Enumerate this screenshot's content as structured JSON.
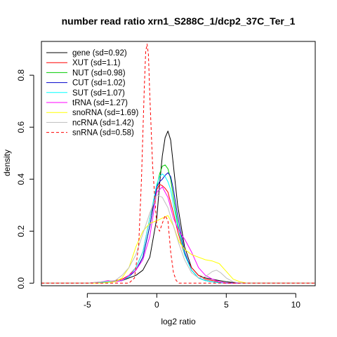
{
  "chart_data": {
    "type": "line",
    "title": "number read ratio xrn1_S288C_1/dcp2_37C_Ter_1",
    "xlabel": "log2 ratio",
    "ylabel": "density",
    "xlim": [
      -8.3,
      11.4
    ],
    "ylim": [
      -0.01,
      0.93
    ],
    "x_ticks": [
      -5,
      0,
      5,
      10
    ],
    "x_tick_labels": [
      "-5",
      "0",
      "5",
      "10"
    ],
    "y_ticks": [
      0.0,
      0.2,
      0.4,
      0.6,
      0.8
    ],
    "y_tick_labels": [
      "0.0",
      "0.2",
      "0.4",
      "0.6",
      "0.8"
    ],
    "grid": false,
    "legend_position": "top-left",
    "series": [
      {
        "name": "gene (sd=0.92)",
        "color": "#000000",
        "dash": false,
        "x": [
          -8.3,
          -5.0,
          -3.5,
          -2.5,
          -2.0,
          -1.5,
          -1.0,
          -0.5,
          0.0,
          0.2,
          0.4,
          0.6,
          0.8,
          1.0,
          1.2,
          1.5,
          2.0,
          2.5,
          3.0,
          3.5,
          4.0,
          4.5,
          5.0,
          6.0,
          7.0,
          11.4
        ],
        "y": [
          0.0,
          0.0,
          0.005,
          0.01,
          0.02,
          0.03,
          0.05,
          0.1,
          0.25,
          0.38,
          0.49,
          0.56,
          0.585,
          0.55,
          0.45,
          0.3,
          0.14,
          0.06,
          0.03,
          0.02,
          0.015,
          0.01,
          0.005,
          0.0,
          0.0,
          0.0
        ]
      },
      {
        "name": "XUT (sd=1.1)",
        "color": "#ff0000",
        "dash": false,
        "x": [
          -8.3,
          -5.0,
          -3.5,
          -2.5,
          -2.0,
          -1.5,
          -1.0,
          -0.5,
          0.0,
          0.2,
          0.4,
          0.6,
          0.8,
          1.0,
          1.2,
          1.5,
          2.0,
          2.5,
          3.0,
          3.5,
          4.0,
          4.5,
          5.0,
          6.0,
          11.4
        ],
        "y": [
          0.0,
          0.0,
          0.005,
          0.015,
          0.03,
          0.06,
          0.12,
          0.25,
          0.36,
          0.38,
          0.375,
          0.365,
          0.35,
          0.31,
          0.27,
          0.2,
          0.11,
          0.06,
          0.03,
          0.015,
          0.01,
          0.005,
          0.0,
          0.0,
          0.0
        ]
      },
      {
        "name": "NUT (sd=0.98)",
        "color": "#00cc00",
        "dash": false,
        "x": [
          -8.3,
          -5.0,
          -3.5,
          -2.5,
          -2.0,
          -1.5,
          -1.0,
          -0.5,
          0.0,
          0.2,
          0.4,
          0.6,
          0.8,
          1.0,
          1.2,
          1.5,
          2.0,
          2.5,
          3.0,
          3.5,
          4.0,
          4.5,
          5.0,
          6.0,
          11.4
        ],
        "y": [
          0.0,
          0.0,
          0.005,
          0.01,
          0.025,
          0.05,
          0.1,
          0.22,
          0.37,
          0.42,
          0.45,
          0.455,
          0.44,
          0.4,
          0.33,
          0.23,
          0.11,
          0.05,
          0.02,
          0.01,
          0.005,
          0.002,
          0.0,
          0.0,
          0.0
        ]
      },
      {
        "name": "CUT (sd=1.02)",
        "color": "#0000cc",
        "dash": false,
        "x": [
          -8.3,
          -5.0,
          -3.5,
          -2.5,
          -2.0,
          -1.5,
          -1.0,
          -0.5,
          0.0,
          0.2,
          0.4,
          0.6,
          0.8,
          1.0,
          1.2,
          1.5,
          2.0,
          2.5,
          3.0,
          3.5,
          4.0,
          4.5,
          5.0,
          6.0,
          11.4
        ],
        "y": [
          0.0,
          0.0,
          0.005,
          0.01,
          0.025,
          0.05,
          0.1,
          0.22,
          0.37,
          0.39,
          0.4,
          0.415,
          0.425,
          0.41,
          0.36,
          0.26,
          0.12,
          0.05,
          0.02,
          0.01,
          0.005,
          0.002,
          0.0,
          0.0,
          0.0
        ]
      },
      {
        "name": "SUT (sd=1.07)",
        "color": "#00ffff",
        "dash": false,
        "x": [
          -8.3,
          -5.0,
          -3.5,
          -2.5,
          -2.0,
          -1.5,
          -1.0,
          -0.5,
          0.0,
          0.2,
          0.4,
          0.6,
          0.8,
          1.0,
          1.2,
          1.5,
          2.0,
          2.5,
          3.0,
          3.5,
          4.0,
          4.5,
          5.0,
          6.0,
          11.4
        ],
        "y": [
          0.0,
          0.0,
          0.005,
          0.01,
          0.025,
          0.06,
          0.12,
          0.25,
          0.38,
          0.41,
          0.42,
          0.41,
          0.39,
          0.36,
          0.3,
          0.22,
          0.11,
          0.05,
          0.02,
          0.01,
          0.005,
          0.002,
          0.0,
          0.0,
          0.0
        ]
      },
      {
        "name": "tRNA (sd=1.27)",
        "color": "#ff00ff",
        "dash": false,
        "x": [
          -8.3,
          -5.0,
          -4.0,
          -3.5,
          -3.0,
          -2.5,
          -2.0,
          -1.5,
          -1.0,
          -0.5,
          0.0,
          0.4,
          0.8,
          1.2,
          1.6,
          2.0,
          2.5,
          3.0,
          3.5,
          4.0,
          4.5,
          5.0,
          6.0,
          11.4
        ],
        "y": [
          0.0,
          0.0,
          0.005,
          0.01,
          0.005,
          0.01,
          0.03,
          0.05,
          0.09,
          0.18,
          0.35,
          0.37,
          0.33,
          0.25,
          0.2,
          0.17,
          0.12,
          0.06,
          0.03,
          0.015,
          0.005,
          0.0,
          0.0,
          0.0
        ]
      },
      {
        "name": "snoRNA (sd=1.69)",
        "color": "#ffff00",
        "dash": false,
        "x": [
          -8.3,
          -4.0,
          -3.0,
          -2.5,
          -2.0,
          -1.5,
          -1.0,
          -0.5,
          0.0,
          0.4,
          0.8,
          1.2,
          1.6,
          2.0,
          2.5,
          3.0,
          3.5,
          4.0,
          4.5,
          5.0,
          5.5,
          6.0,
          6.5,
          11.4
        ],
        "y": [
          0.0,
          0.0,
          0.005,
          0.02,
          0.06,
          0.14,
          0.2,
          0.23,
          0.24,
          0.25,
          0.26,
          0.22,
          0.16,
          0.13,
          0.11,
          0.1,
          0.09,
          0.085,
          0.075,
          0.045,
          0.015,
          0.005,
          0.0,
          0.0
        ]
      },
      {
        "name": "ncRNA (sd=1.42)",
        "color": "#bebebe",
        "dash": false,
        "x": [
          -8.3,
          -5.0,
          -4.0,
          -3.0,
          -2.5,
          -2.0,
          -1.5,
          -1.0,
          -0.5,
          0.0,
          0.4,
          0.8,
          1.2,
          1.6,
          2.0,
          2.5,
          3.0,
          3.5,
          4.0,
          4.3,
          4.6,
          5.0,
          5.5,
          6.0,
          11.4
        ],
        "y": [
          0.0,
          0.0,
          0.005,
          0.01,
          0.03,
          0.06,
          0.11,
          0.19,
          0.27,
          0.34,
          0.33,
          0.29,
          0.22,
          0.15,
          0.09,
          0.04,
          0.02,
          0.025,
          0.045,
          0.05,
          0.04,
          0.02,
          0.005,
          0.0,
          0.0
        ]
      },
      {
        "name": "snRNA (sd=0.58)",
        "color": "#ff0000",
        "dash": true,
        "x": [
          -8.3,
          -3.0,
          -2.0,
          -1.6,
          -1.3,
          -1.1,
          -0.9,
          -0.8,
          -0.7,
          -0.6,
          -0.5,
          -0.3,
          0.0,
          0.2,
          0.4,
          0.6,
          0.8,
          1.0,
          1.2,
          1.4,
          1.6,
          2.0,
          11.4
        ],
        "y": [
          0.0,
          0.0,
          0.0,
          0.02,
          0.15,
          0.4,
          0.75,
          0.89,
          0.92,
          0.88,
          0.72,
          0.45,
          0.22,
          0.2,
          0.23,
          0.26,
          0.24,
          0.12,
          0.04,
          0.01,
          0.0,
          0.0,
          0.0
        ]
      }
    ]
  }
}
